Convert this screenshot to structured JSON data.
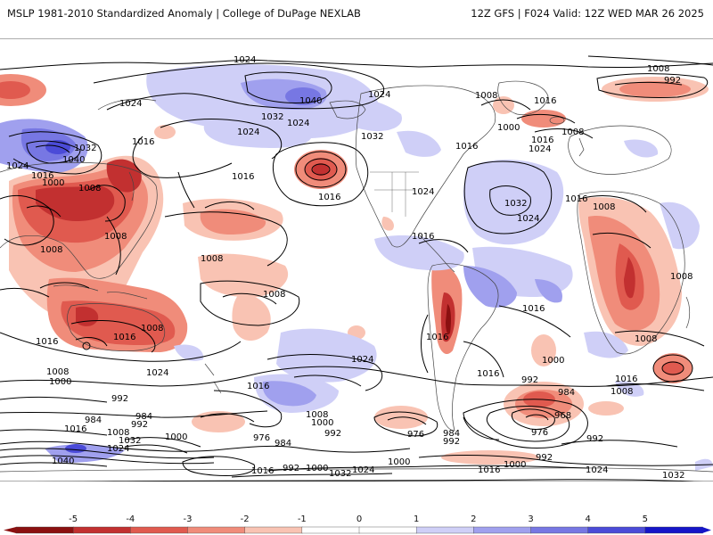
{
  "header": {
    "left": "MSLP 1981-2010 Standardized Anomaly | College of DuPage NEXLAB",
    "right": "12Z GFS | F024 Valid: 12Z WED MAR 26 2025"
  },
  "colors": {
    "neg5": "#8b1010",
    "neg4": "#c23030",
    "neg3": "#e05a4f",
    "neg2": "#f08c7a",
    "neg1": "#f9c3b3",
    "zero": "#ffffff",
    "pos1": "#cfcff7",
    "pos2": "#a0a0ee",
    "pos3": "#7777e3",
    "pos4": "#4b4bd8",
    "pos5": "#1515c8",
    "land": "#444444",
    "contour": "#000000"
  },
  "colorbar": {
    "ticks": [
      "-5",
      "-4",
      "-3",
      "-2",
      "-1",
      "0",
      "1",
      "2",
      "3",
      "4",
      "5"
    ]
  },
  "isobar_labels": {
    "l1024_a": "1024",
    "l1008_a": "1008",
    "l992_a": "992",
    "l1040_a": "1040",
    "l1024_b": "1024",
    "l1032_a": "1032",
    "l1024_c": "1024",
    "l1032_b": "1032",
    "l1008_b": "1008",
    "l1016_a": "1016",
    "l1000_a": "1000",
    "l1016_b": "1016",
    "l1008_c": "1008",
    "l1016_c": "1016",
    "l1024_d": "1024",
    "l1016_d": "1016",
    "l1024_e": "1024",
    "l1016_e": "1016",
    "l1032_c": "1032",
    "l1040_b": "1040",
    "l1024_f": "1024",
    "l1016_f": "1016",
    "l1000_b": "1000",
    "l1008_d": "1008",
    "l1032_d": "1032",
    "l1024_g": "1024",
    "l1016_g": "1016",
    "l1024_h": "1024",
    "l1008_e": "1008",
    "l1008_f": "1008",
    "l1008_g": "1008",
    "l1008_h": "1008",
    "l1016_h": "1016",
    "l1024_i": "1024",
    "l1016_i": "1016",
    "l1008_i": "1008",
    "l1016_j": "1016",
    "l1000_c": "1000",
    "l1008_j": "1008",
    "l1000_d": "1000",
    "l992_b": "992",
    "l1024_j": "1024",
    "l1016_k": "1016",
    "l1008_k": "1008",
    "l1000_e": "1000",
    "l992_c": "992",
    "l984_a": "984",
    "l984_b": "984",
    "l992_d": "992",
    "l1016_l": "1016",
    "l1008_l": "1008",
    "l1032_e": "1032",
    "l1000_f": "1000",
    "l1024_k": "1024",
    "l1040_c": "1040",
    "l976_a": "976",
    "l984_c": "984",
    "l976_b": "976",
    "l984_d": "984",
    "l992_e": "992",
    "l1000_g": "1000",
    "l992_f": "992",
    "l984_e": "984",
    "l968_a": "968",
    "l976_c": "976",
    "l1016_m": "1016",
    "l1008_m": "1008",
    "l1016_n": "1016",
    "l1008_n": "1008",
    "l1016_o": "1016",
    "l992_g": "992",
    "l1000_h": "1000",
    "l1024_l": "1024",
    "l1008_o": "1008",
    "l1016_p": "1016",
    "l1000_i": "1000",
    "l992_h": "992",
    "l1016_q": "1016",
    "l1024_m": "1024",
    "l1032_f": "1032",
    "l1008_p": "1008"
  }
}
